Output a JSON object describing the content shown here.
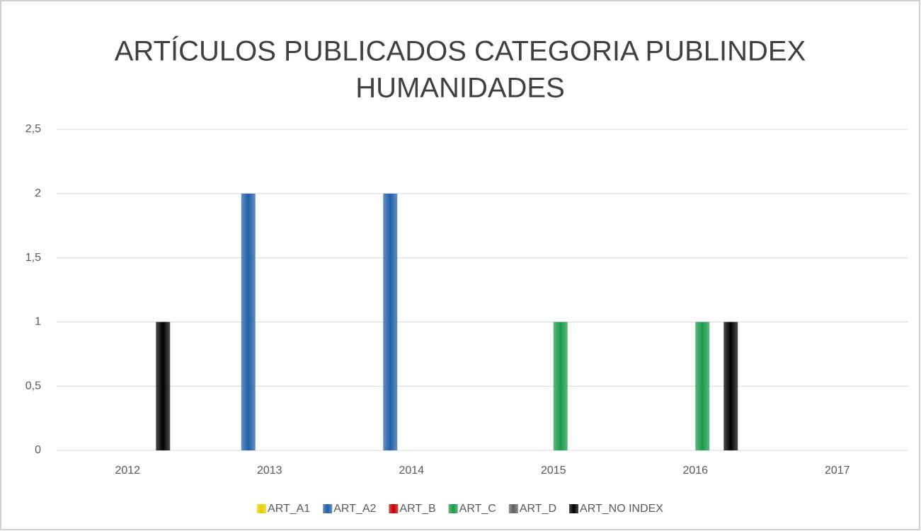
{
  "chart_data": {
    "type": "bar",
    "title": [
      "ARTÍCULOS PUBLICADOS CATEGORIA PUBLINDEX",
      "HUMANIDADES"
    ],
    "categories": [
      "2012",
      "2013",
      "2014",
      "2015",
      "2016",
      "2017"
    ],
    "series": [
      {
        "name": "ART_A1",
        "color": "#e8d000",
        "values": [
          0,
          0,
          0,
          0,
          0,
          0
        ]
      },
      {
        "name": "ART_A2",
        "color": "#1f5fa8",
        "values": [
          0,
          2,
          2,
          0,
          0,
          0
        ]
      },
      {
        "name": "ART_B",
        "color": "#c00000",
        "values": [
          0,
          0,
          0,
          0,
          0,
          0
        ]
      },
      {
        "name": "ART_C",
        "color": "#1a9a4a",
        "values": [
          0,
          0,
          0,
          1,
          1,
          0
        ]
      },
      {
        "name": "ART_D",
        "color": "#606060",
        "values": [
          0,
          0,
          0,
          0,
          0,
          0
        ]
      },
      {
        "name": "ART_NO INDEX",
        "color": "#000000",
        "values": [
          1,
          0,
          0,
          0,
          1,
          0
        ]
      }
    ],
    "ylim": [
      0,
      2.5
    ],
    "yticks": [
      0,
      {
        "value": 0.5,
        "label": "0,5"
      },
      1,
      {
        "value": 1.5,
        "label": "1,5"
      },
      2,
      {
        "value": 2.5,
        "label": "2,5"
      }
    ],
    "grid": true,
    "legend": "bottom"
  }
}
